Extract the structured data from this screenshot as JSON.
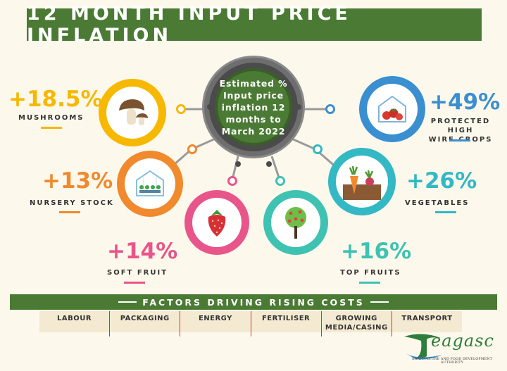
{
  "title": "12 MONTH INPUT PRICE INFLATION",
  "hub_text": "Estimated %\nInput price\ninflation 12\nmonths to\nMarch 2022",
  "items": {
    "mushrooms": {
      "value": "+18.5%",
      "label": "MUSHROOMS",
      "color": "#f6b800"
    },
    "protected": {
      "value": "+49%",
      "label": "PROTECTED HIGH\nWIRE CROPS",
      "color": "#3a8fd0"
    },
    "nursery": {
      "value": "+13%",
      "label": "NURSERY STOCK",
      "color": "#f08a2c"
    },
    "vegetables": {
      "value": "+26%",
      "label": "VEGETABLES",
      "color": "#33b8c4"
    },
    "soft_fruit": {
      "value": "+14%",
      "label": "SOFT FRUIT",
      "color": "#e8558a"
    },
    "top_fruits": {
      "value": "+16%",
      "label": "TOP FRUITS",
      "color": "#3ec2b2"
    }
  },
  "factors_title": "FACTORS DRIVING RISING COSTS",
  "factors": [
    "LABOUR",
    "PACKAGING",
    "ENERGY",
    "FERTILISER",
    "GROWING\nMEDIA/CASING",
    "TRANSPORT"
  ],
  "logo": {
    "name": "eagasc",
    "tagline": "AGRICULTURE AND FOOD DEVELOPMENT AUTHORITY",
    "color": "#2e7d3a"
  },
  "icons": [
    "mushroom-icon",
    "greenhouse-tomato-icon",
    "greenhouse-seedling-icon",
    "carrot-radish-icon",
    "strawberry-icon",
    "apple-tree-icon"
  ]
}
